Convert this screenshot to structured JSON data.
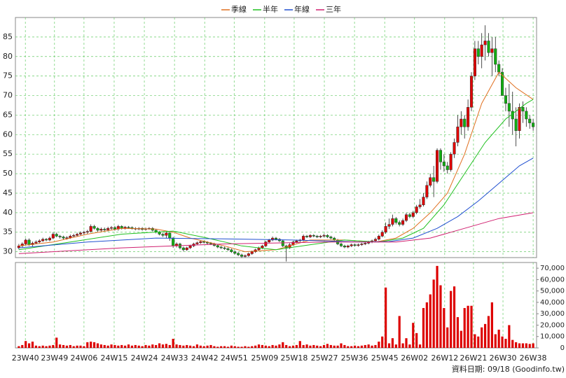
{
  "chart_data": {
    "type": "candlestick",
    "legend": "top",
    "grid": true,
    "up_color": "#e00000",
    "down_color": "#10b010",
    "xlim": [
      -1,
      151
    ],
    "ylim": [
      28.5,
      90
    ],
    "yticks": [
      30,
      35,
      40,
      45,
      50,
      55,
      60,
      65,
      70,
      75,
      80,
      85
    ],
    "xticks": [
      {
        "value": 1.9,
        "label": "23W40"
      },
      {
        "value": 10.4,
        "label": "23W49"
      },
      {
        "value": 19.0,
        "label": "24W06"
      },
      {
        "value": 27.8,
        "label": "24W15"
      },
      {
        "value": 36.6,
        "label": "24W24"
      },
      {
        "value": 45.4,
        "label": "24W33"
      },
      {
        "value": 54.2,
        "label": "24W42"
      },
      {
        "value": 62.8,
        "label": "24W51"
      },
      {
        "value": 71.7,
        "label": "25W09"
      },
      {
        "value": 80.3,
        "label": "25W18"
      },
      {
        "value": 89.1,
        "label": "25W27"
      },
      {
        "value": 97.9,
        "label": "25W36"
      },
      {
        "value": 106.7,
        "label": "25W45"
      },
      {
        "value": 115.4,
        "label": "26W02"
      },
      {
        "value": 124.2,
        "label": "26W12"
      },
      {
        "value": 132.6,
        "label": "26W21"
      },
      {
        "value": 141.2,
        "label": "26W30"
      },
      {
        "value": 150,
        "label": "26W38"
      }
    ],
    "y2lim": [
      0,
      75000
    ],
    "y2ticks": [
      0,
      {
        "value": 10000,
        "label": "10,000"
      },
      {
        "value": 20000,
        "label": "20,000"
      },
      {
        "value": 30000,
        "label": "30,000"
      },
      {
        "value": 40000,
        "label": "40,000"
      },
      {
        "value": 50000,
        "label": "50,000"
      },
      {
        "value": 60000,
        "label": "60,000"
      },
      {
        "value": 70000,
        "label": "70,000"
      }
    ],
    "source": "資料日期: 09/18 (Goodinfo.tw)",
    "x": [
      0,
      1,
      2,
      3,
      4,
      5,
      6,
      7,
      8,
      9,
      10,
      11,
      12,
      13,
      14,
      15,
      16,
      17,
      18,
      19,
      20,
      21,
      22,
      23,
      24,
      25,
      26,
      27,
      28,
      29,
      30,
      31,
      32,
      33,
      34,
      35,
      36,
      37,
      38,
      39,
      40,
      41,
      42,
      43,
      44,
      45,
      46,
      47,
      48,
      49,
      50,
      51,
      52,
      53,
      54,
      55,
      56,
      57,
      58,
      59,
      60,
      61,
      62,
      63,
      64,
      65,
      66,
      67,
      68,
      69,
      70,
      71,
      72,
      73,
      74,
      75,
      76,
      77,
      78,
      79,
      80,
      81,
      82,
      83,
      84,
      85,
      86,
      87,
      88,
      89,
      90,
      91,
      92,
      93,
      94,
      95,
      96,
      97,
      98,
      99,
      100,
      101,
      102,
      103,
      104,
      105,
      106,
      107,
      108,
      109,
      110,
      111,
      112,
      113,
      114,
      115,
      116,
      117,
      118,
      119,
      120,
      121,
      122,
      123,
      124,
      125,
      126,
      127,
      128,
      129,
      130,
      131,
      132,
      133,
      134,
      135,
      136,
      137,
      138,
      139,
      140,
      141,
      142,
      143,
      144,
      145,
      146,
      147,
      148,
      149,
      150
    ],
    "open": [
      31,
      31.5,
      32,
      33,
      31.8,
      32.2,
      32.5,
      32.8,
      33.2,
      33,
      33.5,
      34.5,
      34,
      33.8,
      33.5,
      33.6,
      34,
      34.2,
      34.5,
      34.8,
      35,
      35.2,
      36.5,
      36,
      35.5,
      35.8,
      35.6,
      36,
      36.2,
      35.8,
      36.5,
      36,
      36.3,
      36.2,
      36,
      35.8,
      36,
      35.7,
      35.9,
      36,
      35.5,
      35,
      34.5,
      34.2,
      34.8,
      33.5,
      31.5,
      32,
      31,
      30.5,
      31,
      31.5,
      32,
      32.3,
      32.6,
      32.4,
      32.2,
      32,
      31.6,
      31.2,
      31,
      30.8,
      30.5,
      30,
      29.6,
      29.2,
      28.8,
      29,
      29.5,
      30,
      30.5,
      31,
      31.5,
      32.5,
      33,
      33.5,
      33.2,
      32.8,
      31.5,
      31,
      31.8,
      32.5,
      32.8,
      33,
      34,
      33.8,
      34.2,
      34,
      33.8,
      34,
      34.2,
      33.8,
      33.5,
      33,
      32,
      31.5,
      31.2,
      31.5,
      31.8,
      31.6,
      31.8,
      32,
      32.2,
      32.5,
      32.8,
      33.2,
      34,
      35,
      36.5,
      37,
      38.5,
      37.5,
      37,
      38,
      39.5,
      39,
      40,
      41.5,
      42,
      44,
      47,
      49,
      48,
      56,
      53,
      52,
      51,
      55,
      58,
      62,
      64,
      62,
      67,
      75,
      82,
      80,
      83,
      84,
      81,
      82,
      78,
      76,
      70,
      68,
      66,
      64,
      61,
      67,
      66,
      64,
      63
    ],
    "high": [
      32,
      32.4,
      33.4,
      33.4,
      32.6,
      32.9,
      33.2,
      33.6,
      33.5,
      33.9,
      35,
      34.9,
      34.3,
      34.1,
      34,
      34.4,
      34.6,
      34.9,
      35.2,
      35.4,
      35.6,
      37,
      36.9,
      36.3,
      36.2,
      36.2,
      36.4,
      36.6,
      36.6,
      36.9,
      36.8,
      36.6,
      36.6,
      36.5,
      36.3,
      36.3,
      36.3,
      36.2,
      36.3,
      36.3,
      35.8,
      35.3,
      34.8,
      35.2,
      35.1,
      33.8,
      32.4,
      32.3,
      31.3,
      31.3,
      31.8,
      32.3,
      32.6,
      32.9,
      32.9,
      32.7,
      32.5,
      32.3,
      31.9,
      31.5,
      31.3,
      31.1,
      30.8,
      30.3,
      29.9,
      29.5,
      29.3,
      29.8,
      30.3,
      30.8,
      31.3,
      31.8,
      32.8,
      33.3,
      33.9,
      33.8,
      33.5,
      33.1,
      31.8,
      32.2,
      32.8,
      33.1,
      33.3,
      34.4,
      34.3,
      34.5,
      34.5,
      34.3,
      34.3,
      34.6,
      34.5,
      34.1,
      33.8,
      33.3,
      32.3,
      31.8,
      31.8,
      32.1,
      32.1,
      32.1,
      32.3,
      32.5,
      32.8,
      33.1,
      33.6,
      34.4,
      35.5,
      37.5,
      38.5,
      39.5,
      38.9,
      38,
      38.5,
      40,
      40,
      40.5,
      42,
      43.5,
      45,
      48,
      50,
      52,
      56.5,
      56.5,
      55,
      53,
      55.5,
      59,
      65,
      66,
      65,
      69,
      76,
      84,
      84,
      86,
      88,
      86,
      85,
      85,
      79,
      77,
      72,
      73,
      71,
      67,
      68,
      68.5,
      67,
      65,
      64
    ],
    "low": [
      30.6,
      31.1,
      31.7,
      31.5,
      31.4,
      31.9,
      32.2,
      32.5,
      32.7,
      32.7,
      33.2,
      33.7,
      33.4,
      33.1,
      33.1,
      33.3,
      33.7,
      33.9,
      34.2,
      34.4,
      34.6,
      34.9,
      35.7,
      35.1,
      35.1,
      35.2,
      35.2,
      35.6,
      35.4,
      35.4,
      35.7,
      35.7,
      35.9,
      35.7,
      35.5,
      35.5,
      35.4,
      35.4,
      35.6,
      35.2,
      34.7,
      34.2,
      33.8,
      33.4,
      32.8,
      31,
      31.1,
      30.6,
      30.1,
      30.2,
      30.7,
      31.2,
      31.7,
      32,
      32.1,
      31.9,
      31.7,
      31.3,
      30.9,
      30.7,
      30.5,
      30.2,
      29.7,
      29.3,
      28.9,
      28.4,
      28.5,
      28.7,
      29.2,
      29.7,
      30.2,
      30.7,
      31.2,
      32.2,
      32.7,
      32.9,
      32.5,
      31.2,
      27.5,
      30.7,
      31.5,
      32.2,
      32.5,
      32.7,
      33.5,
      33.5,
      33.7,
      33.5,
      33.5,
      33.7,
      33.5,
      33.2,
      32.7,
      31.7,
      31.2,
      30.9,
      30.9,
      31.2,
      31.3,
      31.3,
      31.5,
      31.7,
      31.9,
      32.2,
      32.5,
      32.9,
      33.7,
      34.6,
      35.8,
      36.5,
      37,
      36.5,
      36.6,
      37.6,
      38.6,
      38.6,
      39.6,
      41,
      41.6,
      43.5,
      46.5,
      44,
      47.5,
      51,
      50.5,
      50,
      50.5,
      54,
      57,
      60,
      59,
      61,
      66,
      74,
      78,
      77,
      79,
      80,
      75,
      76,
      75,
      70,
      66,
      62,
      60,
      57,
      59,
      63,
      62,
      61.5,
      61
    ],
    "close": [
      31.5,
      32,
      33,
      31.8,
      32.2,
      32.5,
      32.8,
      33.2,
      33,
      33.5,
      34.5,
      34,
      33.8,
      33.5,
      33.6,
      34,
      34.2,
      34.5,
      34.8,
      35,
      35.2,
      36.5,
      36,
      35.5,
      35.8,
      35.6,
      36,
      36.2,
      35.8,
      36.5,
      36,
      36.3,
      36.2,
      36,
      35.8,
      36,
      35.7,
      35.9,
      36,
      35.5,
      35,
      34.5,
      34.2,
      34.8,
      33.5,
      31.5,
      32,
      31,
      30.5,
      31,
      31.5,
      32,
      32.3,
      32.6,
      32.4,
      32.2,
      32,
      31.6,
      31.2,
      31,
      30.8,
      30.5,
      30,
      29.6,
      29.2,
      28.8,
      29,
      29.5,
      30,
      30.5,
      31,
      31.5,
      32.5,
      33,
      33.5,
      33.2,
      32.8,
      31.5,
      31,
      31.8,
      32.5,
      32.8,
      33,
      34,
      33.8,
      34.2,
      34,
      33.8,
      34,
      34.2,
      33.8,
      33.5,
      33,
      32,
      31.5,
      31.2,
      31.5,
      31.8,
      31.6,
      31.8,
      32,
      32.2,
      32.5,
      32.8,
      33.2,
      34,
      35,
      36.5,
      37,
      38.5,
      37.5,
      37,
      38,
      39.5,
      39,
      40,
      41.5,
      42,
      44,
      47,
      49,
      48,
      56,
      53,
      52,
      51,
      55,
      58,
      62,
      64,
      62,
      67,
      75,
      82,
      80,
      83,
      84,
      81,
      82,
      78,
      76,
      70,
      68,
      66,
      64,
      61,
      67,
      66,
      64,
      63,
      62
    ],
    "volume": {
      "color": "#dd0000",
      "axis": "y2",
      "values": [
        1500,
        2500,
        6000,
        4000,
        5500,
        2000,
        1500,
        2000,
        1500,
        2000,
        2500,
        9000,
        3000,
        2500,
        2000,
        2500,
        1500,
        2000,
        2000,
        1500,
        5000,
        5500,
        5000,
        4000,
        3000,
        2500,
        2000,
        3000,
        2500,
        2000,
        2500,
        2000,
        3000,
        2000,
        2500,
        2000,
        1500,
        2500,
        2000,
        3000,
        2500,
        4000,
        3000,
        3500,
        2500,
        8000,
        3000,
        2500,
        2000,
        2500,
        2000,
        1500,
        3000,
        2000,
        1500,
        2000,
        2500,
        1500,
        1000,
        1500,
        1500,
        1000,
        2000,
        1500,
        1000,
        1000,
        1500,
        1000,
        1500,
        2000,
        3000,
        2500,
        2000,
        1500,
        2500,
        2000,
        3000,
        5000,
        2500,
        1500,
        2000,
        2500,
        6000,
        2500,
        3000,
        2000,
        2500,
        2000,
        1500,
        2500,
        3500,
        2500,
        2000,
        2000,
        4000,
        2500,
        1500,
        1500,
        2000,
        1500,
        2000,
        2500,
        3000,
        2000,
        2500,
        5500,
        10000,
        53000,
        4000,
        8500,
        3000,
        28000,
        4000,
        8500,
        3000,
        22000,
        13000,
        3000,
        35000,
        40000,
        47000,
        60000,
        72000,
        55000,
        35000,
        18000,
        50000,
        54000,
        27000,
        15000,
        35000,
        37000,
        37000,
        12000,
        10000,
        18000,
        21000,
        28000,
        40000,
        12000,
        16000,
        10000,
        8000,
        20000,
        7000,
        5000,
        4000,
        4000,
        4000,
        3500,
        4000
      ]
    },
    "series": [
      {
        "name": "季線",
        "color": "#e07020",
        "x": [
          0,
          10,
          20,
          30,
          40,
          45,
          50,
          60,
          66,
          75,
          85,
          95,
          104,
          110,
          115,
          120,
          125,
          130,
          135,
          140,
          145,
          150
        ],
        "values": [
          31.5,
          32.5,
          34.5,
          36,
          35.8,
          35,
          33.5,
          31.5,
          30,
          30.5,
          33,
          33,
          32.5,
          33.5,
          36,
          40,
          45,
          55,
          68,
          76,
          72,
          69
        ]
      },
      {
        "name": "半年",
        "color": "#20c020",
        "x": [
          0,
          15,
          30,
          45,
          55,
          65,
          75,
          85,
          95,
          105,
          112,
          118,
          124,
          130,
          136,
          142,
          148,
          150
        ],
        "values": [
          30.5,
          32.5,
          34.5,
          35.3,
          33.5,
          31.5,
          30.5,
          31.8,
          33,
          32.5,
          33.5,
          36,
          42,
          50,
          58,
          64,
          68,
          69
        ]
      },
      {
        "name": "年線",
        "color": "#2050d0",
        "x": [
          0,
          20,
          40,
          60,
          80,
          100,
          108,
          115,
          122,
          128,
          134,
          140,
          146,
          150
        ],
        "values": [
          31,
          32.5,
          33.5,
          33.3,
          33,
          32.5,
          32.6,
          33.5,
          36,
          39,
          43,
          47.5,
          52,
          54
        ]
      },
      {
        "name": "三年",
        "color": "#d02070",
        "x": [
          0,
          30,
          60,
          90,
          110,
          120,
          130,
          140,
          150
        ],
        "values": [
          29.5,
          31,
          32,
          32.5,
          32.5,
          33.5,
          36,
          38.5,
          40
        ]
      }
    ]
  }
}
